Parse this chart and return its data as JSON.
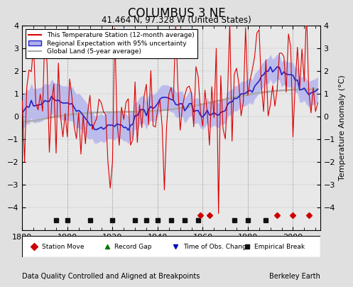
{
  "title": "COLUMBUS 3 NE",
  "subtitle": "41.464 N, 97.328 W (United States)",
  "ylabel": "Temperature Anomaly (°C)",
  "xlabel_footer": "Data Quality Controlled and Aligned at Breakpoints",
  "source_label": "Berkeley Earth",
  "xlim": [
    1880,
    2012
  ],
  "ylim": [
    -5,
    4
  ],
  "yticks": [
    -4,
    -3,
    -2,
    -1,
    0,
    1,
    2,
    3,
    4
  ],
  "xticks": [
    1880,
    1900,
    1920,
    1940,
    1960,
    1980,
    2000
  ],
  "bg_color": "#e0e0e0",
  "plot_bg_color": "#e8e8e8",
  "red_color": "#dd0000",
  "blue_color": "#2222cc",
  "blue_fill_color": "#b0b0ee",
  "gray_color": "#aaaaaa",
  "station_move_color": "#cc0000",
  "record_gap_color": "#007700",
  "obs_change_color": "#0000bb",
  "empirical_break_color": "#111111",
  "seed": 17,
  "n_years": 132,
  "start_year": 1880,
  "marker_years_station_move": [
    1959,
    1963,
    1993,
    2000,
    2007
  ],
  "marker_years_record_gap": [],
  "marker_years_obs_change": [],
  "marker_years_empirical_break": [
    1895,
    1900,
    1910,
    1920,
    1930,
    1935,
    1940,
    1946,
    1952,
    1958,
    1974,
    1980,
    1988
  ]
}
